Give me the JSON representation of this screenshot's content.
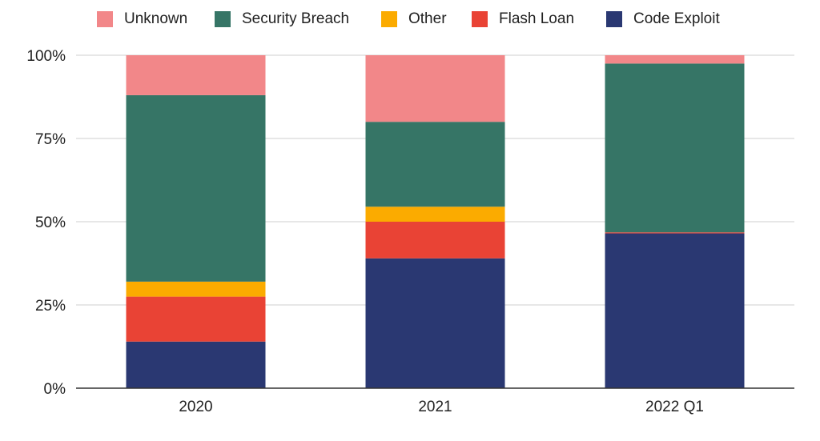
{
  "chart_data": {
    "type": "bar",
    "stacked": true,
    "percent": true,
    "categories": [
      "2020",
      "2021",
      "2022 Q1"
    ],
    "series": [
      {
        "name": "Code Exploit",
        "color": "#2a3872",
        "values": [
          14,
          39,
          46.5
        ]
      },
      {
        "name": "Flash Loan",
        "color": "#e94335",
        "values": [
          13.5,
          11,
          0.3
        ]
      },
      {
        "name": "Other",
        "color": "#fbab00",
        "values": [
          4.5,
          4.5,
          0
        ]
      },
      {
        "name": "Security Breach",
        "color": "#367566",
        "values": [
          56,
          25.5,
          50.7
        ]
      },
      {
        "name": "Unknown",
        "color": "#f28789",
        "values": [
          12,
          20,
          2.5
        ]
      }
    ],
    "legend_order": [
      "Unknown",
      "Security Breach",
      "Other",
      "Flash Loan",
      "Code Exploit"
    ],
    "legend_position": "top",
    "y_ticks": [
      "0%",
      "25%",
      "50%",
      "75%",
      "100%"
    ],
    "ylim": [
      0,
      100
    ],
    "grid": true
  }
}
